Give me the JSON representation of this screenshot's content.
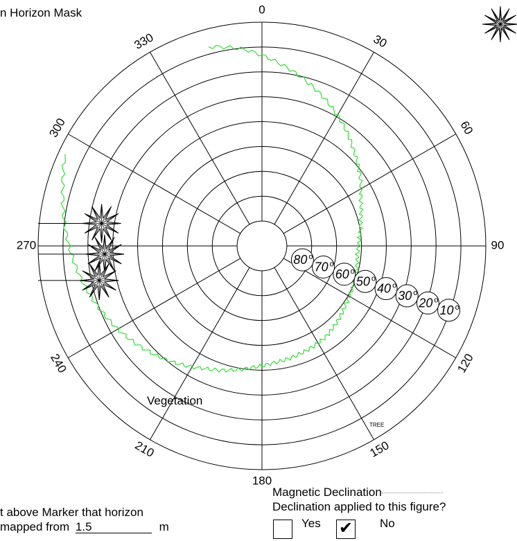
{
  "title": "n Horizon Mask",
  "polar": {
    "azimuth_labels": [
      "0",
      "30",
      "60",
      "90",
      "120",
      "150",
      "180",
      "210",
      "240",
      "270",
      "300",
      "330"
    ],
    "elevation_labels": [
      "80",
      "70",
      "60",
      "50",
      "40",
      "30",
      "20",
      "10"
    ],
    "degree_symbol": "o",
    "ring_count": 8,
    "spoke_step_deg": 30
  },
  "annotations": {
    "vegetation": "Vegetation",
    "tree": "TREE"
  },
  "horizon_mask": {
    "color": "#33dd33",
    "profile": [
      {
        "az": 345,
        "el": 8
      },
      {
        "az": 355,
        "el": 12
      },
      {
        "az": 5,
        "el": 18
      },
      {
        "az": 15,
        "el": 24
      },
      {
        "az": 25,
        "el": 30
      },
      {
        "az": 35,
        "el": 36
      },
      {
        "az": 45,
        "el": 42
      },
      {
        "az": 55,
        "el": 47
      },
      {
        "az": 65,
        "el": 52
      },
      {
        "az": 75,
        "el": 55
      },
      {
        "az": 85,
        "el": 57
      },
      {
        "az": 95,
        "el": 58
      },
      {
        "az": 105,
        "el": 57
      },
      {
        "az": 115,
        "el": 56
      },
      {
        "az": 125,
        "el": 55
      },
      {
        "az": 135,
        "el": 53
      },
      {
        "az": 145,
        "el": 51
      },
      {
        "az": 155,
        "el": 50
      },
      {
        "az": 165,
        "el": 49
      },
      {
        "az": 175,
        "el": 48
      },
      {
        "az": 185,
        "el": 46
      },
      {
        "az": 195,
        "el": 43
      },
      {
        "az": 205,
        "el": 40
      },
      {
        "az": 215,
        "el": 36
      },
      {
        "az": 225,
        "el": 32
      },
      {
        "az": 235,
        "el": 28
      },
      {
        "az": 245,
        "el": 24
      },
      {
        "az": 255,
        "el": 20
      },
      {
        "az": 265,
        "el": 16
      },
      {
        "az": 275,
        "el": 12
      },
      {
        "az": 285,
        "el": 8
      },
      {
        "az": 295,
        "el": 3
      }
    ]
  },
  "sun_markers": [
    {
      "az": 278,
      "el": 28
    },
    {
      "az": 267,
      "el": 30
    },
    {
      "az": 258,
      "el": 26
    }
  ],
  "footer": {
    "height_text_line1": "t above Marker that horizon",
    "height_text_line2_prefix": "mapped from",
    "height_value": "1.5",
    "height_unit": "m",
    "declination_label": "Magnetic Declination",
    "declination_question": "Declination applied to this figure?",
    "yes_label": "Yes",
    "no_label": "No",
    "yes_checked": false,
    "no_checked": true,
    "check_mark": "✔"
  },
  "compass_rose_icon": "compass-rose-icon"
}
